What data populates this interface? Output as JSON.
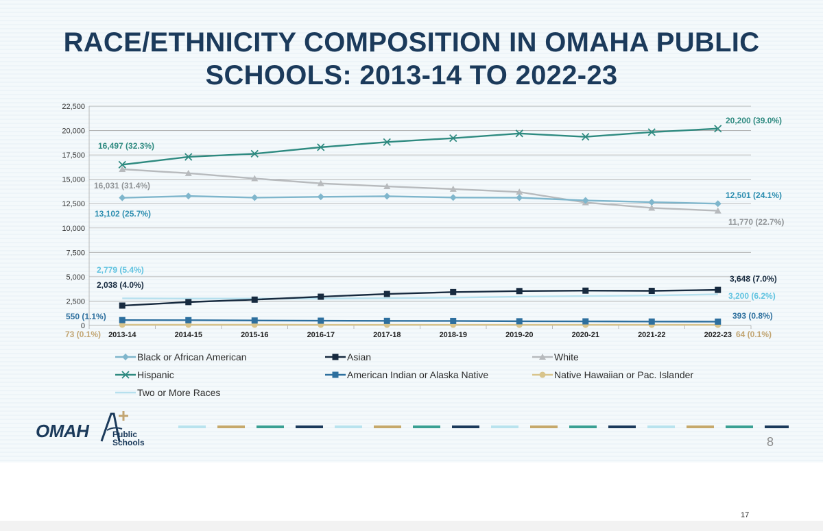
{
  "title": {
    "line1": "RACE/ETHNICITY COMPOSITION IN OMAHA PUBLIC",
    "line2": "SCHOOLS: 2013-14 TO 2022-23"
  },
  "chart_data": {
    "type": "line",
    "title": "RACE/ETHNICITY COMPOSITION IN OMAHA PUBLIC SCHOOLS: 2013-14 TO 2022-23",
    "xlabel": "",
    "ylabel": "",
    "categories": [
      "2013-14",
      "2014-15",
      "2015-16",
      "2016-17",
      "2017-18",
      "2018-19",
      "2019-20",
      "2020-21",
      "2021-22",
      "2022-23"
    ],
    "ylim": [
      0,
      22500
    ],
    "yticks": [
      0,
      2500,
      5000,
      7500,
      10000,
      12500,
      15000,
      17500,
      20000,
      22500
    ],
    "ytick_labels": [
      "0",
      "2,500",
      "5,000",
      "7,500",
      "10,000",
      "12,500",
      "15,000",
      "17,500",
      "20,000",
      "22,500"
    ],
    "grid": true,
    "legend_position": "bottom",
    "series": [
      {
        "name": "Black or African American",
        "color": "#7fb6cc",
        "marker": "diamond",
        "values": [
          13102,
          13280,
          13120,
          13200,
          13260,
          13130,
          13110,
          12830,
          12650,
          12501
        ]
      },
      {
        "name": "Asian",
        "color": "#172a3f",
        "marker": "square",
        "values": [
          2038,
          2400,
          2650,
          2950,
          3230,
          3420,
          3530,
          3570,
          3550,
          3648
        ]
      },
      {
        "name": "White",
        "color": "#b7babd",
        "marker": "triangle",
        "values": [
          16031,
          15620,
          15080,
          14580,
          14270,
          14000,
          13700,
          12620,
          12060,
          11770
        ]
      },
      {
        "name": "Hispanic",
        "color": "#2e8a80",
        "marker": "x",
        "values": [
          16497,
          17300,
          17620,
          18290,
          18820,
          19220,
          19700,
          19360,
          19840,
          20200
        ]
      },
      {
        "name": "American Indian or Alaska Native",
        "color": "#2d6f9e",
        "marker": "square",
        "values": [
          550,
          540,
          510,
          490,
          470,
          460,
          430,
          420,
          400,
          393
        ]
      },
      {
        "name": "Native Hawaiian or Pac. Islander",
        "color": "#d8c48c",
        "marker": "circle",
        "values": [
          73,
          70,
          70,
          68,
          67,
          66,
          65,
          65,
          64,
          64
        ]
      },
      {
        "name": "Two or More Races",
        "color": "#b6e0ee",
        "marker": "none",
        "values": [
          2779,
          2760,
          2760,
          2760,
          2800,
          2850,
          2960,
          3020,
          3070,
          3200
        ]
      }
    ],
    "annotations": [
      {
        "text": "16,497 (32.3%)",
        "color": "#2e8a80"
      },
      {
        "text": "16,031 (31.4%)",
        "color": "#8f9396"
      },
      {
        "text": "13,102 (25.7%)",
        "color": "#2d8eb0"
      },
      {
        "text": "2,779 (5.4%)",
        "color": "#5fc2e0"
      },
      {
        "text": "2,038 (4.0%)",
        "color": "#172a3f"
      },
      {
        "text": "550 (1.1%)",
        "color": "#2d6f9e"
      },
      {
        "text": "73 (0.1%)",
        "color": "#c2a572"
      },
      {
        "text": "20,200 (39.0%)",
        "color": "#2e8a80"
      },
      {
        "text": "12,501 (24.1%)",
        "color": "#2d8eb0"
      },
      {
        "text": "11,770 (22.7%)",
        "color": "#8f9396"
      },
      {
        "text": "3,648 (7.0%)",
        "color": "#172a3f"
      },
      {
        "text": "3,200 (6.2%)",
        "color": "#5fc2e0"
      },
      {
        "text": "393 (0.8%)",
        "color": "#2d6f9e"
      },
      {
        "text": "64 (0.1%)",
        "color": "#c2a572"
      }
    ]
  },
  "logo": {
    "word": "OMAH",
    "line1": "Public",
    "line2": "Schools",
    "colors": [
      "#1b3a5b",
      "#c2a572"
    ]
  },
  "decoration": {
    "dash_colors": [
      "#b9e3ee",
      "#c6a96b",
      "#3aa093",
      "#1b3a5b"
    ]
  },
  "slide_number": "8",
  "page_number": "17"
}
